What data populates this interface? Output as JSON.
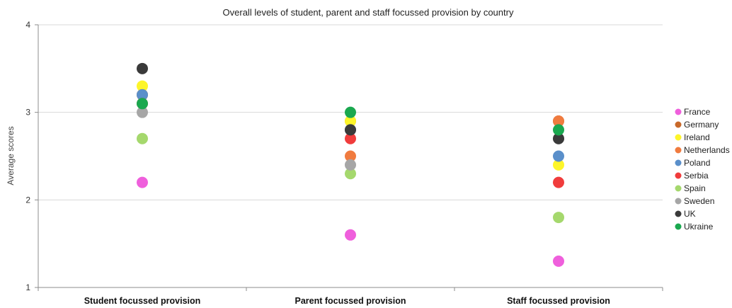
{
  "chart_data": {
    "type": "scatter",
    "title": "Overall levels of student, parent and staff focussed provision by country",
    "xlabel": "",
    "ylabel": "Average scores",
    "categories": [
      "Student focussed provision",
      "Parent focussed provision",
      "Staff focussed provision"
    ],
    "ylim": [
      1,
      4
    ],
    "yticks": [
      1,
      2,
      3,
      4
    ],
    "grid": "horizontal",
    "legend_position": "right",
    "series": [
      {
        "name": "France",
        "color": "#ef5fdc",
        "values": [
          2.2,
          1.6,
          1.3
        ]
      },
      {
        "name": "Germany",
        "color": "#c8692a",
        "values": [
          3.2,
          2.9,
          2.9
        ]
      },
      {
        "name": "Ireland",
        "color": "#fdf52a",
        "values": [
          3.3,
          2.9,
          2.4
        ]
      },
      {
        "name": "Netherlands",
        "color": "#f07b3f",
        "values": [
          3.2,
          2.5,
          2.9
        ]
      },
      {
        "name": "Poland",
        "color": "#5a8fca",
        "values": [
          3.2,
          2.8,
          2.5
        ]
      },
      {
        "name": "Serbia",
        "color": "#f03c3c",
        "values": [
          3.1,
          2.7,
          2.2
        ]
      },
      {
        "name": "Spain",
        "color": "#a5d86d",
        "values": [
          2.7,
          2.3,
          1.8
        ]
      },
      {
        "name": "Sweden",
        "color": "#a6a6a6",
        "values": [
          3.0,
          2.4,
          2.7
        ]
      },
      {
        "name": "UK",
        "color": "#3a3a3a",
        "values": [
          3.5,
          2.8,
          2.7
        ]
      },
      {
        "name": "Ukraine",
        "color": "#1aa84f",
        "values": [
          3.1,
          3.0,
          2.8
        ]
      }
    ]
  }
}
